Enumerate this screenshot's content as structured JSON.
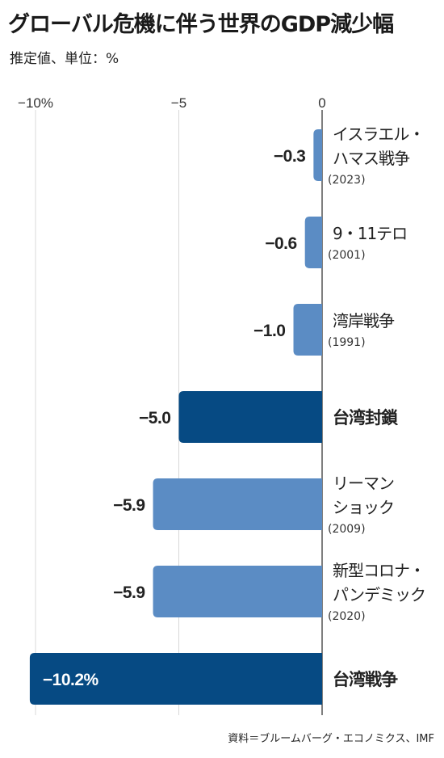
{
  "title": "グローバル危機に伴う世界のGDP減少幅",
  "subtitle": "推定値、単位：%",
  "source": "資料＝ブルームバーグ・エコノミクス、IMF",
  "colors": {
    "normal": "#5b8cc4",
    "highlight": "#064a83",
    "axis": "#555555",
    "grid": "#d8d8d8"
  },
  "chart_data": {
    "type": "bar",
    "orientation": "horizontal",
    "xlim": [
      -10.5,
      0
    ],
    "ticks": [
      {
        "value": -10,
        "label": "−10%"
      },
      {
        "value": -5,
        "label": "−5"
      },
      {
        "value": 0,
        "label": "0"
      }
    ],
    "grid": true,
    "bars": [
      {
        "lines": [
          "イスラエル・",
          "ハマス戦争"
        ],
        "year": "(2023)",
        "value": -0.3,
        "value_label": "−0.3",
        "highlight": false
      },
      {
        "lines": [
          "9・11テロ"
        ],
        "year": "(2001)",
        "value": -0.6,
        "value_label": "−0.6",
        "highlight": false
      },
      {
        "lines": [
          "湾岸戦争"
        ],
        "year": "(1991)",
        "value": -1.0,
        "value_label": "−1.0",
        "highlight": false
      },
      {
        "lines": [
          "台湾封鎖"
        ],
        "year": "",
        "value": -5.0,
        "value_label": "−5.0",
        "highlight": true
      },
      {
        "lines": [
          "リーマン",
          "ショック"
        ],
        "year": "(2009)",
        "value": -5.9,
        "value_label": "−5.9",
        "highlight": false
      },
      {
        "lines": [
          "新型コロナ・",
          "パンデミック"
        ],
        "year": "(2020)",
        "value": -5.9,
        "value_label": "−5.9",
        "highlight": false
      },
      {
        "lines": [
          "台湾戦争"
        ],
        "year": "",
        "value": -10.2,
        "value_label": "−10.2%",
        "highlight": true
      }
    ]
  }
}
